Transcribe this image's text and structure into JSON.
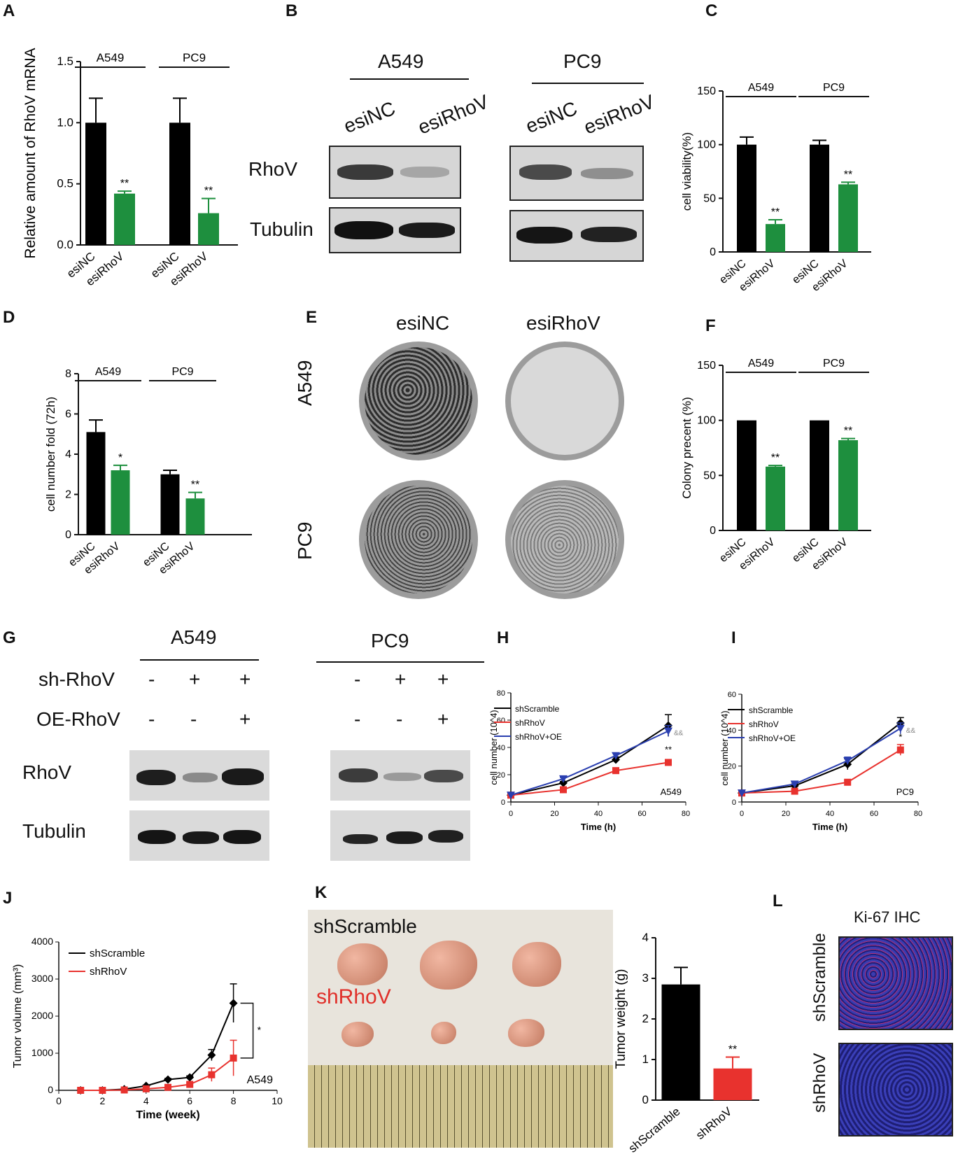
{
  "panels": {
    "A": {
      "letter": "A",
      "ylabel": "Relative amount of RhoV mRNA",
      "groups": [
        "A549",
        "PC9"
      ]
    },
    "B": {
      "letter": "B",
      "cell_a": "A549",
      "cell_b": "PC9",
      "lane1": "esiNC",
      "lane2": "esiRhoV",
      "row1": "RhoV",
      "row2": "Tubulin"
    },
    "C": {
      "letter": "C",
      "ylabel": "cell viability(%)",
      "groups": [
        "A549",
        "PC9"
      ]
    },
    "D": {
      "letter": "D",
      "ylabel": "cell number fold (72h)",
      "groups": [
        "A549",
        "PC9"
      ]
    },
    "E": {
      "letter": "E",
      "col1": "esiNC",
      "col2": "esiRhoV",
      "row1": "A549",
      "row2": "PC9"
    },
    "F": {
      "letter": "F",
      "ylabel": "Colony precent (%)",
      "groups": [
        "A549",
        "PC9"
      ]
    },
    "G": {
      "letter": "G",
      "cell_a": "A549",
      "cell_b": "PC9",
      "sh_label": "sh-RhoV",
      "oe_label": "OE-RhoV",
      "row1": "RhoV",
      "row2": "Tubulin",
      "sh_signs": [
        "-",
        "+",
        "+"
      ],
      "oe_signs": [
        "-",
        "-",
        "+"
      ]
    },
    "H": {
      "letter": "H"
    },
    "I": {
      "letter": "I"
    },
    "J": {
      "letter": "J"
    },
    "K": {
      "letter": "K",
      "photo_label1": "shScramble",
      "photo_label2": "shRhoV"
    },
    "L": {
      "letter": "L",
      "title": "Ki-67 IHC",
      "row1": "shScramble",
      "row2": "shRhoV"
    }
  },
  "chart_data": [
    {
      "id": "A",
      "type": "bar",
      "categories": [
        "esiNC",
        "esiRhoV",
        "esiNC",
        "esiRhoV"
      ],
      "groups": [
        "A549",
        "A549",
        "PC9",
        "PC9"
      ],
      "values": [
        1.0,
        0.42,
        1.0,
        0.26
      ],
      "errors": [
        0.2,
        0.02,
        0.2,
        0.12
      ],
      "sig": [
        "",
        "**",
        "",
        "**"
      ],
      "ylabel": "Relative amount of RhoV mRNA",
      "ylim": [
        0,
        1.5
      ],
      "yticks": [
        "0.0",
        "0.5",
        "1.0",
        "1.5"
      ],
      "colors": [
        "#000000",
        "#1e8f3e",
        "#000000",
        "#1e8f3e"
      ]
    },
    {
      "id": "C",
      "type": "bar",
      "categories": [
        "esiNC",
        "esiRhoV",
        "esiNC",
        "esiRhoV"
      ],
      "groups": [
        "A549",
        "A549",
        "PC9",
        "PC9"
      ],
      "values": [
        100,
        26,
        100,
        63
      ],
      "errors": [
        7,
        4,
        4,
        2
      ],
      "sig": [
        "",
        "**",
        "",
        "**"
      ],
      "ylabel": "cell viability(%)",
      "ylim": [
        0,
        150
      ],
      "yticks": [
        "0",
        "50",
        "100",
        "150"
      ],
      "colors": [
        "#000000",
        "#1e8f3e",
        "#000000",
        "#1e8f3e"
      ]
    },
    {
      "id": "D",
      "type": "bar",
      "categories": [
        "esiNC",
        "esiRhoV",
        "esiNC",
        "esiRhoV"
      ],
      "groups": [
        "A549",
        "A549",
        "PC9",
        "PC9"
      ],
      "values": [
        5.1,
        3.2,
        3.0,
        1.8
      ],
      "errors": [
        0.6,
        0.25,
        0.2,
        0.3
      ],
      "sig": [
        "",
        "*",
        "",
        "**"
      ],
      "ylabel": "cell number fold (72h)",
      "ylim": [
        0,
        8
      ],
      "yticks": [
        "0",
        "2",
        "4",
        "6",
        "8"
      ],
      "colors": [
        "#000000",
        "#1e8f3e",
        "#000000",
        "#1e8f3e"
      ]
    },
    {
      "id": "F",
      "type": "bar",
      "categories": [
        "esiNC",
        "esiRhoV",
        "esiNC",
        "esiRhoV"
      ],
      "groups": [
        "A549",
        "A549",
        "PC9",
        "PC9"
      ],
      "values": [
        100,
        58,
        100,
        82
      ],
      "errors": [
        0,
        1,
        0,
        1.5
      ],
      "sig": [
        "",
        "**",
        "",
        "**"
      ],
      "ylabel": "Colony precent (%)",
      "ylim": [
        0,
        150
      ],
      "yticks": [
        "0",
        "50",
        "100",
        "150"
      ],
      "colors": [
        "#000000",
        "#1e8f3e",
        "#000000",
        "#1e8f3e"
      ]
    },
    {
      "id": "H",
      "type": "line",
      "xlabel": "Time (h)",
      "ylabel": "cell number (10^4)",
      "xlim": [
        0,
        80
      ],
      "ylim": [
        0,
        80
      ],
      "xticks": [
        "0",
        "20",
        "40",
        "60",
        "80"
      ],
      "yticks": [
        "0",
        "20",
        "40",
        "60",
        "80"
      ],
      "annotation": "A549",
      "x": [
        0,
        24,
        48,
        72
      ],
      "series": [
        {
          "name": "shScramble",
          "color": "#000000",
          "marker": "diamond",
          "values": [
            5,
            14,
            31,
            56
          ],
          "errors": [
            0,
            1,
            2,
            8
          ]
        },
        {
          "name": "shRhoV",
          "color": "#e8322e",
          "marker": "square",
          "values": [
            5,
            9,
            23,
            29
          ],
          "errors": [
            0,
            1,
            1,
            1.5
          ]
        },
        {
          "name": "shRhoV+OE",
          "color": "#2a3fb0",
          "marker": "triangle",
          "values": [
            5,
            17,
            34,
            52
          ],
          "errors": [
            0,
            1,
            2,
            4
          ]
        }
      ],
      "sig": [
        "&&",
        "**"
      ]
    },
    {
      "id": "I",
      "type": "line",
      "xlabel": "Time (h)",
      "ylabel": "cell number (10^4)",
      "xlim": [
        0,
        80
      ],
      "ylim": [
        0,
        60
      ],
      "xticks": [
        "0",
        "20",
        "40",
        "60",
        "80"
      ],
      "yticks": [
        "0",
        "20",
        "40",
        "60"
      ],
      "annotation": "PC9",
      "x": [
        0,
        24,
        48,
        72
      ],
      "series": [
        {
          "name": "shScramble",
          "color": "#000000",
          "marker": "diamond",
          "values": [
            5,
            9,
            21,
            44
          ],
          "errors": [
            0,
            1,
            3,
            3
          ]
        },
        {
          "name": "shRhoV",
          "color": "#e8322e",
          "marker": "square",
          "values": [
            5,
            6,
            11,
            29
          ],
          "errors": [
            0,
            0.5,
            1,
            3
          ]
        },
        {
          "name": "shRhoV+OE",
          "color": "#2a3fb0",
          "marker": "triangle",
          "values": [
            5,
            10,
            23,
            41
          ],
          "errors": [
            0,
            1,
            2,
            3
          ]
        }
      ],
      "sig": [
        "&&",
        "*"
      ]
    },
    {
      "id": "J",
      "type": "line",
      "xlabel": "Time (week)",
      "ylabel": "Tumor volume (mm³)",
      "xlim": [
        0,
        10
      ],
      "ylim": [
        0,
        4000
      ],
      "xticks": [
        "0",
        "2",
        "4",
        "6",
        "8",
        "10"
      ],
      "yticks": [
        "0",
        "1000",
        "2000",
        "3000",
        "4000"
      ],
      "annotation": "A549",
      "x": [
        1,
        2,
        3,
        4,
        5,
        6,
        7,
        8
      ],
      "series": [
        {
          "name": "shScramble",
          "color": "#000000",
          "marker": "diamond",
          "values": [
            0,
            0,
            30,
            120,
            290,
            350,
            950,
            2350
          ],
          "errors": [
            0,
            0,
            10,
            20,
            30,
            40,
            150,
            520
          ]
        },
        {
          "name": "shRhoV",
          "color": "#e8322e",
          "marker": "square",
          "values": [
            0,
            0,
            10,
            40,
            80,
            160,
            420,
            870
          ],
          "errors": [
            0,
            0,
            5,
            10,
            20,
            40,
            180,
            480
          ]
        }
      ],
      "sig": [
        "*"
      ]
    },
    {
      "id": "K",
      "type": "bar",
      "categories": [
        "shScramble",
        "shRhoV"
      ],
      "values": [
        2.85,
        0.78
      ],
      "errors": [
        0.42,
        0.28
      ],
      "sig": [
        "",
        "**"
      ],
      "ylabel": "Tumor weight (g)",
      "ylim": [
        0,
        4
      ],
      "yticks": [
        "0",
        "1",
        "2",
        "3",
        "4"
      ],
      "colors": [
        "#000000",
        "#e8322e"
      ]
    }
  ]
}
